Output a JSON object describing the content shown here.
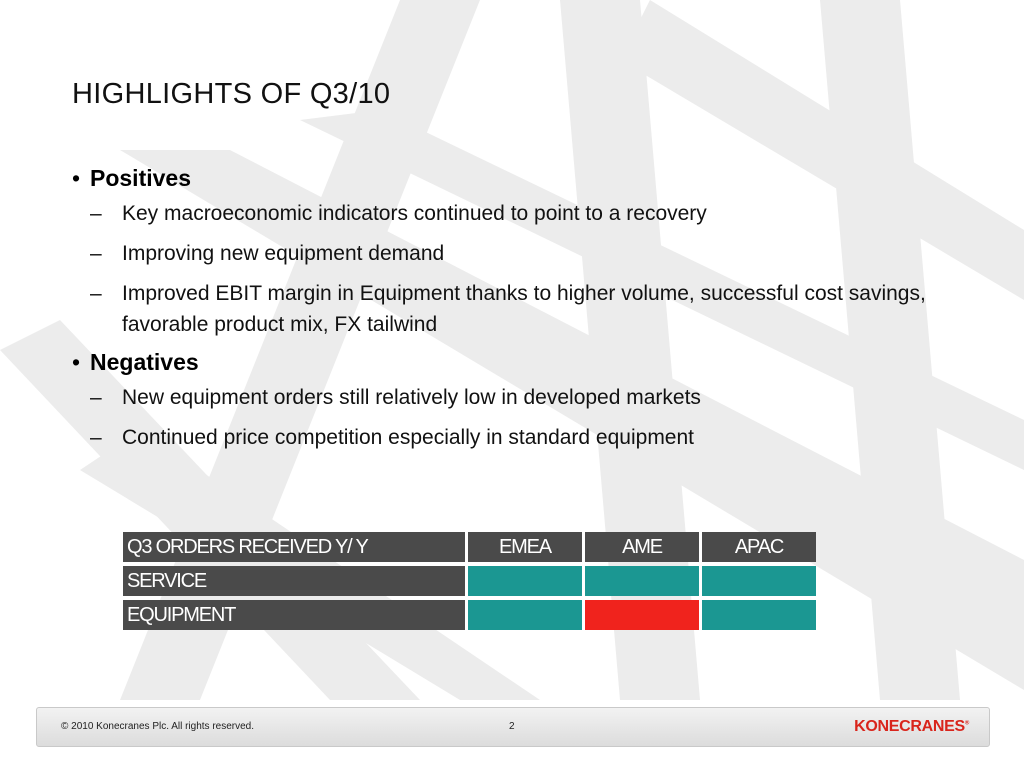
{
  "slide": {
    "title": "HIGHLIGHTS OF Q3/10",
    "sections": [
      {
        "heading": "Positives",
        "items": [
          "Key macroeconomic indicators continued to point to a recovery",
          "Improving new equipment demand",
          "Improved EBIT margin in Equipment thanks to higher volume, successful cost savings, favorable product mix, FX tailwind"
        ]
      },
      {
        "heading": "Negatives",
        "items": [
          "New equipment orders still relatively low in developed markets",
          "Continued price competition especially in standard equipment"
        ]
      }
    ]
  },
  "table": {
    "header": [
      "Q3 ORDERS RECEIVED Y/ Y",
      "EMEA",
      "AME",
      "APAC"
    ],
    "rows": [
      {
        "label": "SERVICE",
        "cells": [
          "green",
          "green",
          "green"
        ]
      },
      {
        "label": "EQUIPMENT",
        "cells": [
          "green",
          "red",
          "green"
        ]
      }
    ],
    "colors": {
      "green": "#1b9792",
      "red": "#f0231d",
      "header": "#4a4a4a"
    }
  },
  "footer": {
    "copyright": "© 2010 Konecranes Plc. All rights reserved.",
    "page_number": "2",
    "logo_text": "KONECRANES",
    "logo_mark": "®"
  }
}
